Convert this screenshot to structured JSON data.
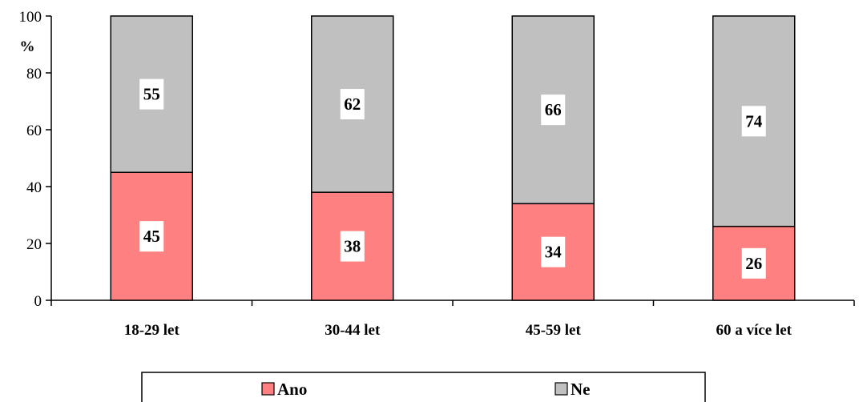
{
  "chart_data": {
    "type": "bar",
    "stacked": true,
    "percent_stacked": true,
    "categories": [
      "18-29 let",
      "30-44 let",
      "45-59 let",
      "60 a více let"
    ],
    "series": [
      {
        "name": "Ano",
        "values": [
          45,
          38,
          34,
          26
        ],
        "color": "#FF8080"
      },
      {
        "name": "Ne",
        "values": [
          55,
          62,
          66,
          74
        ],
        "color": "#C0C0C0"
      }
    ],
    "ylabel": "%",
    "ylim": [
      0,
      100
    ],
    "yticks": [
      0,
      20,
      40,
      60,
      80,
      100
    ],
    "grid": false,
    "legend": "bottom"
  }
}
